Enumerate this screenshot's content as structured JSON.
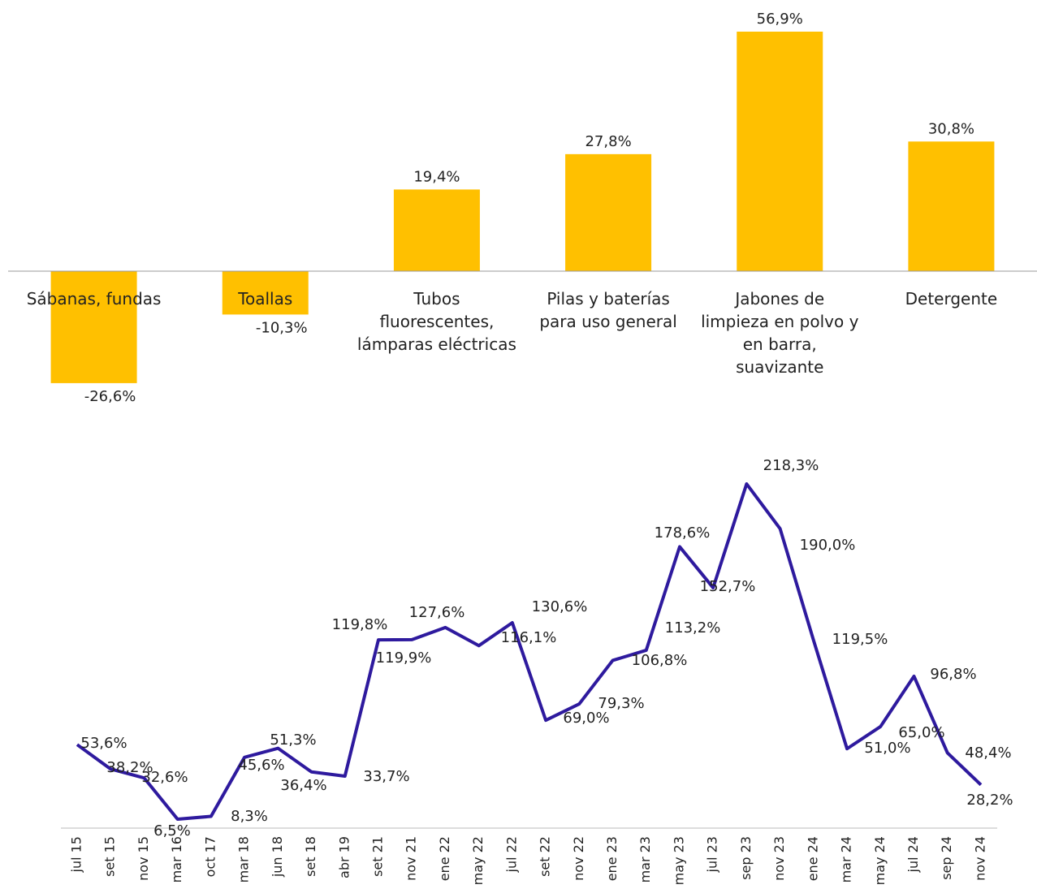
{
  "chart_data": [
    {
      "type": "bar",
      "color": "#ffc000",
      "categories": [
        "Sábanas, fundas",
        "Toallas",
        "Tubos\nfluorescentes,\nlámparas eléctricas",
        "Pilas y baterías\npara uso general",
        "Jabones de\nlimpieza en polvo y\nen barra,\nsuavizante",
        "Detergente"
      ],
      "values": [
        -26.6,
        -10.3,
        19.4,
        27.8,
        56.9,
        30.8
      ],
      "value_labels": [
        "-26,6%",
        "-10,3%",
        "19,4%",
        "27,8%",
        "56,9%",
        "30,8%"
      ]
    },
    {
      "type": "line",
      "color": "#2e1a9e",
      "categories": [
        "jul 15",
        "set 15",
        "nov 15",
        "mar 16",
        "oct 17",
        "mar 18",
        "jun 18",
        "set 18",
        "abr 19",
        "set 21",
        "nov 21",
        "ene 22",
        "may 22",
        "jul 22",
        "set 22",
        "nov 22",
        "ene 23",
        "mar 23",
        "may 23",
        "jul 23",
        "sep 23",
        "nov 23",
        "ene 24",
        "mar 24",
        "may 24",
        "jul 24",
        "sep 24",
        "nov 24"
      ],
      "values": [
        53.6,
        38.2,
        32.6,
        6.5,
        8.3,
        45.6,
        51.3,
        36.4,
        33.7,
        119.8,
        119.9,
        127.6,
        116.1,
        130.6,
        69.0,
        79.3,
        106.8,
        113.2,
        178.6,
        152.7,
        218.3,
        190.0,
        119.5,
        51.0,
        65.0,
        96.8,
        48.4,
        28.2
      ],
      "value_labels": [
        "53,6%",
        "38,2%",
        "32,6%",
        "6,5%",
        "8,3%",
        "45,6%",
        "51,3%",
        "36,4%",
        "33,7%",
        "119,8%",
        "119,9%",
        "127,6%",
        "116,1%",
        "130,6%",
        "69,0%",
        "79,3%",
        "106,8%",
        "113,2%",
        "178,6%",
        "152,7%",
        "218,3%",
        "190,0%",
        "119,5%",
        "51,0%",
        "65,0%",
        "96,8%",
        "48,4%",
        "28,2%"
      ]
    }
  ]
}
